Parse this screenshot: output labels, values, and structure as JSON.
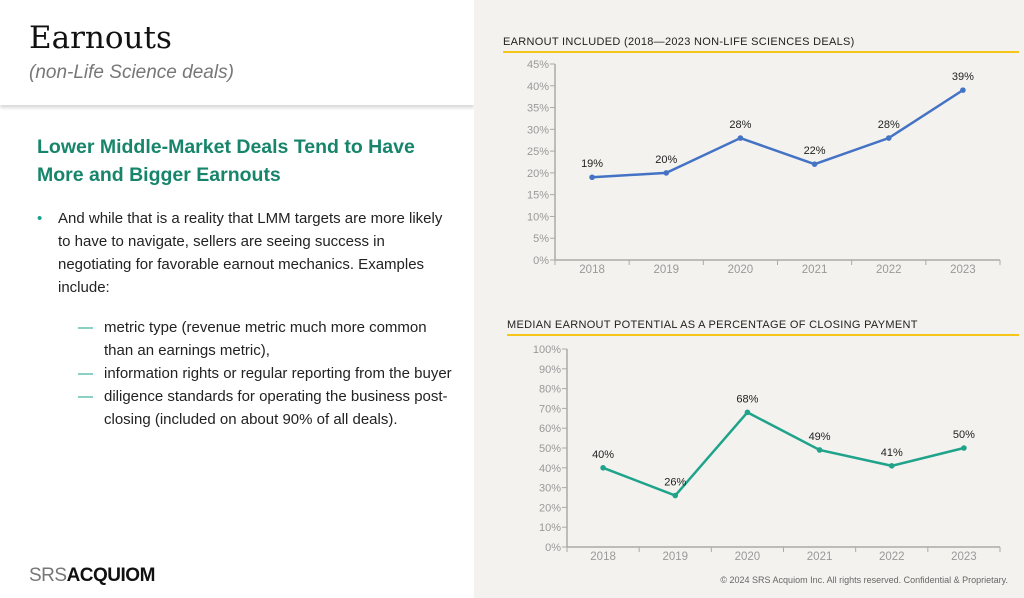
{
  "header": {
    "title": "Earnouts",
    "subtitle": "(non-Life Science deals)"
  },
  "content": {
    "headline": "Lower Middle-Market Deals Tend to Have More and Bigger Earnouts",
    "bullet": "And while that is a reality that LMM targets are more likely to have to navigate, sellers are seeing success in negotiating for favorable earnout mechanics. Examples include:",
    "sub_items": [
      "metric type (revenue metric much more common than an earnings metric),",
      "information rights or regular reporting from the buyer",
      "diligence standards for operating the business post-closing (included on about 90% of all deals)."
    ],
    "bullet_symbol": "•",
    "dash_symbol": "—"
  },
  "logo": {
    "part1": "SRS",
    "part2": "ACQUIOM"
  },
  "footer": {
    "copyright": "© 2024 SRS Acquiom Inc. All rights reserved. Confidential & Proprietary."
  },
  "colors": {
    "accent_green": "#17856b",
    "line1": "#4472c4",
    "line2": "#1fa38a",
    "rule": "#f5c518"
  },
  "chart_data": [
    {
      "type": "line",
      "title": "EARNOUT INCLUDED (2018—2023 NON-LIFE SCIENCES DEALS)",
      "categories": [
        "2018",
        "2019",
        "2020",
        "2021",
        "2022",
        "2023"
      ],
      "values": [
        19,
        20,
        28,
        22,
        28,
        39
      ],
      "data_labels": [
        "19%",
        "20%",
        "28%",
        "22%",
        "28%",
        "39%"
      ],
      "ylim": [
        0,
        45
      ],
      "yticks": [
        0,
        5,
        10,
        15,
        20,
        25,
        30,
        35,
        40,
        45
      ],
      "ytick_suffix": "%",
      "grid": false,
      "legend": "none"
    },
    {
      "type": "line",
      "title": "MEDIAN EARNOUT POTENTIAL AS A PERCENTAGE OF CLOSING PAYMENT",
      "categories": [
        "2018",
        "2019",
        "2020",
        "2021",
        "2022",
        "2023"
      ],
      "values": [
        40,
        26,
        68,
        49,
        41,
        50
      ],
      "data_labels": [
        "40%",
        "26%",
        "68%",
        "49%",
        "41%",
        "50%"
      ],
      "ylim": [
        0,
        100
      ],
      "yticks": [
        0,
        10,
        20,
        30,
        40,
        50,
        60,
        70,
        80,
        90,
        100
      ],
      "ytick_suffix": "%",
      "grid": false,
      "legend": "none"
    }
  ]
}
